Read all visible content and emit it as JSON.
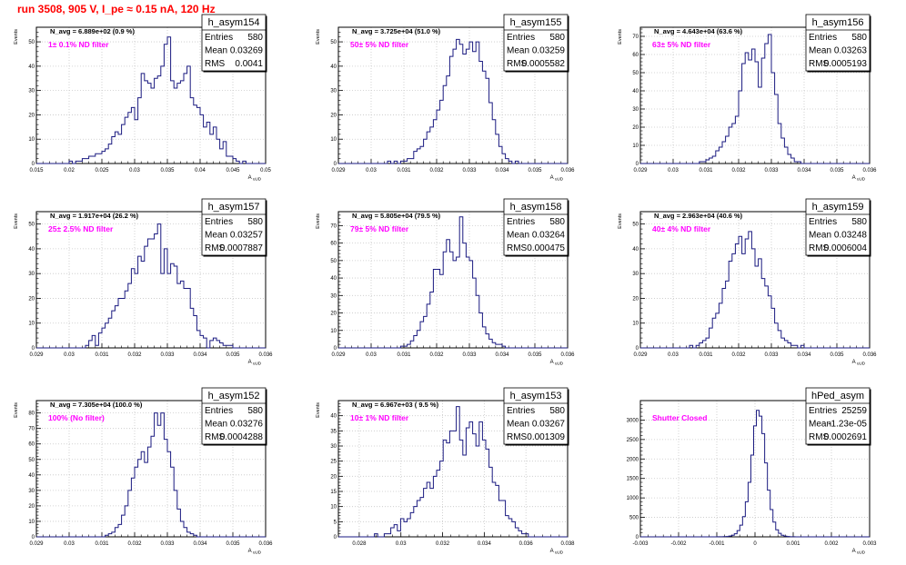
{
  "page": {
    "run_title": "run 3508,   905 V, I_pe ≈ 0.15 nA, 120 Hz"
  },
  "colors": {
    "histogram": "#1a1a80",
    "annotation": "#ff00ff",
    "title": "#ff0000",
    "axis": "#000000"
  },
  "chart_data": [
    {
      "type": "bar",
      "name": "h_asym154",
      "nlabel": "N_avg = 6.889e+02 (0.9 %)",
      "filter": "1± 0.1% ND filter",
      "stats": {
        "entries": "580",
        "mean": "0.03269",
        "rms": "0.0041"
      },
      "xlabel": "A uUD",
      "ylabel": "Events",
      "xlim": [
        0.015,
        0.05
      ],
      "ylim": [
        0,
        56
      ],
      "xticks": [
        0.015,
        0.02,
        0.025,
        0.03,
        0.035,
        0.04,
        0.045,
        0.05
      ],
      "xticklabels": [
        "0.015",
        "0.02",
        "0.025",
        "0.03",
        "0.035",
        "0.04",
        "0.045",
        "0.05"
      ],
      "yticks": [
        0,
        10,
        20,
        30,
        40,
        50
      ],
      "yticklabels": [
        "0",
        "10",
        "20",
        "30",
        "40",
        "50"
      ],
      "values": [
        0,
        0,
        0,
        0,
        0,
        0,
        0,
        0,
        0,
        0,
        1,
        0,
        1,
        1,
        2,
        2,
        3,
        3,
        4,
        4,
        5,
        6,
        8,
        11,
        13,
        12,
        16,
        19,
        21,
        23,
        18,
        27,
        37,
        34,
        33,
        31,
        35,
        36,
        40,
        49,
        52,
        34,
        31,
        33,
        34,
        37,
        40,
        27,
        24,
        23,
        20,
        15,
        17,
        12,
        15,
        10,
        6,
        9,
        3,
        3,
        2,
        1,
        0,
        1,
        0,
        0,
        0,
        0,
        0,
        0
      ]
    },
    {
      "type": "bar",
      "name": "h_asym155",
      "nlabel": "N_avg = 3.725e+04 (51.0 %)",
      "filter": "50± 5% ND filter",
      "stats": {
        "entries": "580",
        "mean": "0.03259",
        "rms": "0.0005582"
      },
      "xlabel": "A uUD",
      "ylabel": "Events",
      "xlim": [
        0.029,
        0.036
      ],
      "ylim": [
        0,
        56
      ],
      "xticks": [
        0.029,
        0.03,
        0.031,
        0.032,
        0.033,
        0.034,
        0.035,
        0.036
      ],
      "xticklabels": [
        "0.029",
        "0.03",
        "0.031",
        "0.032",
        "0.033",
        "0.034",
        "0.035",
        "0.036"
      ],
      "yticks": [
        0,
        10,
        20,
        30,
        40,
        50
      ],
      "yticklabels": [
        "0",
        "10",
        "20",
        "30",
        "40",
        "50"
      ],
      "values": [
        0,
        0,
        0,
        0,
        0,
        0,
        0,
        0,
        0,
        0,
        0,
        0,
        0,
        0,
        0,
        1,
        0,
        1,
        0,
        1,
        1,
        2,
        2,
        5,
        6,
        7,
        10,
        13,
        15,
        18,
        22,
        26,
        32,
        36,
        44,
        47,
        51,
        49,
        45,
        47,
        50,
        46,
        50,
        42,
        38,
        35,
        25,
        18,
        12,
        7,
        4,
        2,
        1,
        0,
        1,
        0,
        0,
        0,
        0,
        0,
        0,
        0,
        0,
        0,
        0,
        0,
        0,
        0,
        0,
        0
      ]
    },
    {
      "type": "bar",
      "name": "h_asym156",
      "nlabel": "N_avg = 4.643e+04 (63.6 %)",
      "filter": "63± 5% ND filter",
      "stats": {
        "entries": "580",
        "mean": "0.03263",
        "rms": "0.0005193"
      },
      "xlabel": "A uUD",
      "ylabel": "Events",
      "xlim": [
        0.029,
        0.036
      ],
      "ylim": [
        0,
        75
      ],
      "xticks": [
        0.029,
        0.03,
        0.031,
        0.032,
        0.033,
        0.034,
        0.035,
        0.036
      ],
      "xticklabels": [
        "0.029",
        "0.03",
        "0.031",
        "0.032",
        "0.033",
        "0.034",
        "0.035",
        "0.036"
      ],
      "yticks": [
        0,
        10,
        20,
        30,
        40,
        50,
        60,
        70
      ],
      "yticklabels": [
        "0",
        "10",
        "20",
        "30",
        "40",
        "50",
        "60",
        "70"
      ],
      "values": [
        0,
        0,
        0,
        0,
        0,
        0,
        0,
        0,
        0,
        0,
        0,
        0,
        0,
        0,
        0,
        0,
        0,
        0,
        1,
        1,
        2,
        3,
        4,
        7,
        9,
        12,
        15,
        20,
        22,
        26,
        40,
        55,
        61,
        57,
        63,
        56,
        42,
        58,
        66,
        71,
        50,
        38,
        22,
        14,
        9,
        5,
        3,
        1,
        1,
        0,
        0,
        0,
        0,
        0,
        0,
        0,
        0,
        0,
        0,
        0,
        0,
        0,
        0,
        0,
        0,
        0,
        0,
        0,
        0,
        0
      ]
    },
    {
      "type": "bar",
      "name": "h_asym157",
      "nlabel": "N_avg = 1.917e+04 (26.2 %)",
      "filter": "25± 2.5% ND filter",
      "stats": {
        "entries": "580",
        "mean": "0.03257",
        "rms": "0.0007887"
      },
      "xlabel": "A uUD",
      "ylabel": "Events",
      "xlim": [
        0.029,
        0.036
      ],
      "ylim": [
        0,
        55
      ],
      "xticks": [
        0.029,
        0.03,
        0.031,
        0.032,
        0.033,
        0.034,
        0.035,
        0.036
      ],
      "xticklabels": [
        "0.029",
        "0.03",
        "0.031",
        "0.032",
        "0.033",
        "0.034",
        "0.035",
        "0.036"
      ],
      "yticks": [
        0,
        10,
        20,
        30,
        40,
        50
      ],
      "yticklabels": [
        "0",
        "10",
        "20",
        "30",
        "40",
        "50"
      ],
      "values": [
        0,
        0,
        0,
        0,
        0,
        0,
        0,
        0,
        0,
        0,
        0,
        0,
        0,
        0,
        0,
        1,
        3,
        5,
        1,
        6,
        8,
        10,
        12,
        15,
        17,
        20,
        20,
        23,
        26,
        32,
        30,
        37,
        35,
        41,
        44,
        44,
        46,
        50,
        30,
        40,
        30,
        34,
        33,
        26,
        27,
        24,
        24,
        16,
        13,
        7,
        5,
        4,
        0,
        3,
        4,
        3,
        2,
        1,
        1,
        1,
        0,
        0,
        0,
        0,
        0,
        0,
        0,
        0,
        0,
        0
      ]
    },
    {
      "type": "bar",
      "name": "h_asym158",
      "nlabel": "N_avg = 5.805e+04 (79.5 %)",
      "filter": "79± 5% ND filter",
      "stats": {
        "entries": "580",
        "mean": "0.03264",
        "rms": "0.000475"
      },
      "xlabel": "A uUD",
      "ylabel": "Events",
      "xlim": [
        0.029,
        0.036
      ],
      "ylim": [
        0,
        78
      ],
      "xticks": [
        0.029,
        0.03,
        0.031,
        0.032,
        0.033,
        0.034,
        0.035,
        0.036
      ],
      "xticklabels": [
        "0.029",
        "0.03",
        "0.031",
        "0.032",
        "0.033",
        "0.034",
        "0.035",
        "0.036"
      ],
      "yticks": [
        0,
        10,
        20,
        30,
        40,
        50,
        60,
        70
      ],
      "yticklabels": [
        "0",
        "10",
        "20",
        "30",
        "40",
        "50",
        "60",
        "70"
      ],
      "values": [
        0,
        0,
        0,
        0,
        0,
        0,
        0,
        0,
        0,
        0,
        0,
        0,
        0,
        0,
        0,
        0,
        0,
        0,
        0,
        1,
        1,
        2,
        4,
        7,
        10,
        15,
        18,
        25,
        32,
        45,
        45,
        42,
        55,
        62,
        55,
        50,
        52,
        75,
        60,
        52,
        50,
        40,
        30,
        20,
        12,
        8,
        5,
        3,
        2,
        2,
        1,
        0,
        0,
        0,
        0,
        0,
        0,
        0,
        0,
        0,
        0,
        0,
        0,
        0,
        0,
        0,
        0,
        0,
        0,
        0
      ]
    },
    {
      "type": "bar",
      "name": "h_asym159",
      "nlabel": "N_avg = 2.963e+04 (40.6 %)",
      "filter": "40± 4% ND filter",
      "stats": {
        "entries": "580",
        "mean": "0.03248",
        "rms": "0.0006004"
      },
      "xlabel": "A uUD",
      "ylabel": "Events",
      "xlim": [
        0.029,
        0.036
      ],
      "ylim": [
        0,
        55
      ],
      "xticks": [
        0.029,
        0.03,
        0.031,
        0.032,
        0.033,
        0.034,
        0.035,
        0.036
      ],
      "xticklabels": [
        "0.029",
        "0.03",
        "0.031",
        "0.032",
        "0.033",
        "0.034",
        "0.035",
        "0.036"
      ],
      "yticks": [
        0,
        10,
        20,
        30,
        40,
        50
      ],
      "yticklabels": [
        "0",
        "10",
        "20",
        "30",
        "40",
        "50"
      ],
      "values": [
        0,
        0,
        0,
        0,
        0,
        0,
        0,
        0,
        0,
        0,
        0,
        0,
        0,
        0,
        0,
        1,
        0,
        1,
        2,
        3,
        4,
        8,
        12,
        14,
        18,
        24,
        27,
        35,
        38,
        42,
        45,
        38,
        44,
        47,
        40,
        33,
        36,
        28,
        25,
        21,
        16,
        10,
        7,
        4,
        3,
        2,
        1,
        1,
        0,
        1,
        0,
        0,
        0,
        0,
        0,
        0,
        0,
        0,
        0,
        0,
        0,
        0,
        0,
        0,
        0,
        0,
        0,
        0,
        0,
        0
      ]
    },
    {
      "type": "bar",
      "name": "h_asym152",
      "nlabel": "N_avg = 7.305e+04 (100.0 %)",
      "filter": "100% (No filter)",
      "stats": {
        "entries": "580",
        "mean": "0.03276",
        "rms": "0.0004288"
      },
      "xlabel": "A uUD",
      "ylabel": "Events",
      "xlim": [
        0.029,
        0.036
      ],
      "ylim": [
        0,
        88
      ],
      "xticks": [
        0.029,
        0.03,
        0.031,
        0.032,
        0.033,
        0.034,
        0.035,
        0.036
      ],
      "xticklabels": [
        "0.029",
        "0.03",
        "0.031",
        "0.032",
        "0.033",
        "0.034",
        "0.035",
        "0.036"
      ],
      "yticks": [
        0,
        10,
        20,
        30,
        40,
        50,
        60,
        70,
        80
      ],
      "yticklabels": [
        "0",
        "10",
        "20",
        "30",
        "40",
        "50",
        "60",
        "70",
        "80"
      ],
      "values": [
        0,
        0,
        0,
        0,
        0,
        0,
        0,
        0,
        0,
        0,
        0,
        0,
        0,
        0,
        0,
        0,
        0,
        0,
        0,
        0,
        0,
        1,
        2,
        3,
        6,
        8,
        14,
        20,
        30,
        38,
        45,
        50,
        55,
        48,
        58,
        65,
        80,
        72,
        80,
        63,
        55,
        45,
        30,
        18,
        10,
        6,
        3,
        2,
        1,
        0,
        0,
        0,
        0,
        0,
        0,
        0,
        0,
        0,
        0,
        0,
        0,
        0,
        0,
        0,
        0,
        0,
        0,
        0,
        0,
        0
      ]
    },
    {
      "type": "bar",
      "name": "h_asym153",
      "nlabel": "N_avg = 6.967e+03 ( 9.5 %)",
      "filter": "10± 1% ND filter",
      "stats": {
        "entries": "580",
        "mean": "0.03267",
        "rms": "0.001309"
      },
      "xlabel": "A uUD",
      "ylabel": "Events",
      "xlim": [
        0.027,
        0.038
      ],
      "ylim": [
        0,
        45
      ],
      "xticks": [
        0.028,
        0.03,
        0.032,
        0.034,
        0.036,
        0.038
      ],
      "xticklabels": [
        "0.028",
        "0.03",
        "0.032",
        "0.034",
        "0.036",
        "0.038"
      ],
      "yticks": [
        0,
        5,
        10,
        15,
        20,
        25,
        30,
        35,
        40
      ],
      "yticklabels": [
        "0",
        "5",
        "10",
        "15",
        "20",
        "25",
        "30",
        "35",
        "40"
      ],
      "values": [
        0,
        0,
        0,
        0,
        0,
        0,
        0,
        0,
        0,
        0,
        0,
        1,
        0,
        0,
        1,
        1,
        3,
        4,
        2,
        6,
        5,
        6,
        8,
        10,
        12,
        13,
        16,
        18,
        16,
        20,
        22,
        25,
        32,
        31,
        35,
        35,
        43,
        32,
        27,
        36,
        38,
        34,
        30,
        38,
        32,
        29,
        23,
        18,
        17,
        12,
        12,
        7,
        6,
        5,
        3,
        2,
        1,
        1,
        0,
        0,
        0,
        0,
        0,
        0,
        0,
        0,
        0,
        0,
        0,
        0
      ]
    },
    {
      "type": "bar",
      "name": "hPed_asym",
      "nlabel": "",
      "filter": "Shutter Closed",
      "stats": {
        "entries": "25259",
        "mean": "-1.23e-05",
        "rms": "0.0002691"
      },
      "xlabel": "A uUD",
      "ylabel": "",
      "xlim": [
        -0.003,
        0.003
      ],
      "ylim": [
        0,
        3500
      ],
      "xticks": [
        -0.003,
        -0.002,
        -0.001,
        0,
        0.001,
        0.002,
        0.003
      ],
      "xticklabels": [
        "-0.003",
        "-0.002",
        "-0.001",
        "0",
        "0.001",
        "0.002",
        "0.003"
      ],
      "yticks": [
        0,
        500,
        1000,
        1500,
        2000,
        2500,
        3000
      ],
      "yticklabels": [
        "0",
        "500",
        "1000",
        "1500",
        "2000",
        "2500",
        "3000"
      ],
      "values": [
        0,
        0,
        0,
        0,
        0,
        0,
        0,
        0,
        0,
        0,
        0,
        0,
        0,
        0,
        0,
        0,
        0,
        0,
        0,
        0,
        0,
        0,
        0,
        0,
        0,
        0,
        0,
        0,
        2,
        3,
        5,
        10,
        20,
        40,
        80,
        160,
        300,
        520,
        900,
        1400,
        2100,
        2850,
        3250,
        3100,
        2650,
        1900,
        1200,
        700,
        380,
        180,
        90,
        40,
        18,
        8,
        4,
        2,
        1,
        0,
        0,
        0,
        0,
        0,
        0,
        0,
        0,
        0,
        0,
        0,
        0,
        0,
        0,
        0,
        0,
        0,
        0,
        0,
        0,
        0,
        0,
        0,
        0,
        0,
        0
      ]
    }
  ]
}
